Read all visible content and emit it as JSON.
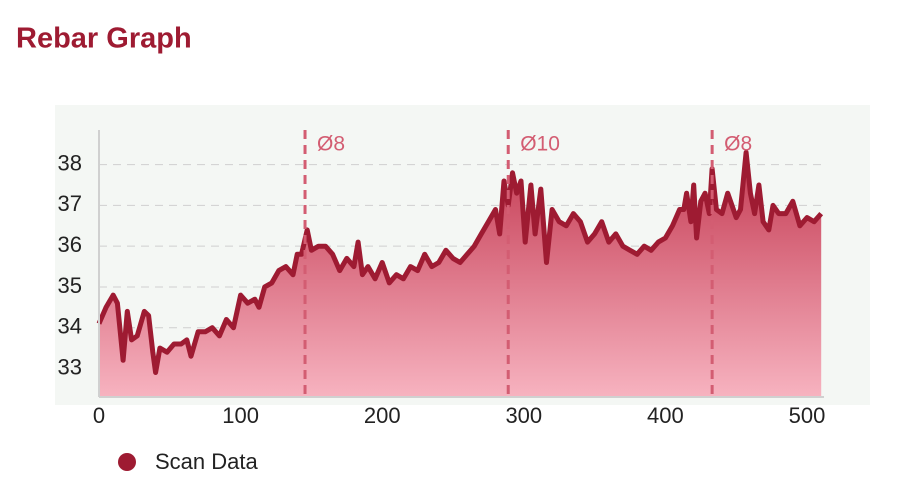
{
  "chart_data": {
    "type": "area",
    "title": "Rebar Graph",
    "x": [
      0,
      5,
      10,
      13,
      17,
      20,
      23,
      27,
      32,
      35,
      38,
      40,
      43,
      48,
      53,
      58,
      62,
      65,
      70,
      75,
      80,
      85,
      90,
      95,
      100,
      105,
      110,
      113,
      117,
      122,
      127,
      132,
      137,
      140,
      143,
      147,
      150,
      155,
      160,
      165,
      170,
      175,
      180,
      183,
      186,
      190,
      195,
      200,
      205,
      210,
      215,
      220,
      225,
      230,
      235,
      240,
      245,
      250,
      255,
      260,
      265,
      270,
      275,
      280,
      283,
      286,
      289,
      292,
      295,
      298,
      301,
      305,
      308,
      312,
      316,
      320,
      325,
      330,
      335,
      340,
      345,
      350,
      355,
      360,
      365,
      370,
      375,
      380,
      385,
      390,
      395,
      400,
      405,
      410,
      413,
      415,
      418,
      420,
      422,
      425,
      428,
      431,
      433,
      436,
      440,
      444,
      447,
      450,
      453,
      457,
      460,
      463,
      466,
      469,
      473,
      476,
      480,
      485,
      490,
      495,
      500,
      505,
      510
    ],
    "series": [
      {
        "name": "Scan Data",
        "color": "#9e1b32",
        "values": [
          34.1,
          34.5,
          34.8,
          34.6,
          33.2,
          34.4,
          33.7,
          33.8,
          34.4,
          34.3,
          33.4,
          32.9,
          33.5,
          33.4,
          33.6,
          33.6,
          33.7,
          33.3,
          33.9,
          33.9,
          34.0,
          33.8,
          34.2,
          34.0,
          34.8,
          34.6,
          34.7,
          34.5,
          35.0,
          35.1,
          35.4,
          35.5,
          35.3,
          35.8,
          35.8,
          36.4,
          35.9,
          36.0,
          36.0,
          35.8,
          35.4,
          35.7,
          35.5,
          36.1,
          35.3,
          35.5,
          35.2,
          35.6,
          35.1,
          35.3,
          35.2,
          35.5,
          35.4,
          35.8,
          35.5,
          35.6,
          35.9,
          35.7,
          35.6,
          35.8,
          36.0,
          36.3,
          36.6,
          36.9,
          36.3,
          37.6,
          37.0,
          37.8,
          37.3,
          37.6,
          36.1,
          37.5,
          36.3,
          37.4,
          35.6,
          36.9,
          36.6,
          36.5,
          36.8,
          36.6,
          36.1,
          36.3,
          36.6,
          36.1,
          36.3,
          36.0,
          35.9,
          35.8,
          36.0,
          35.9,
          36.1,
          36.2,
          36.5,
          36.9,
          36.9,
          37.3,
          36.6,
          37.5,
          36.2,
          37.1,
          37.3,
          36.8,
          37.9,
          36.9,
          36.8,
          37.3,
          37.0,
          36.7,
          36.9,
          38.3,
          37.3,
          36.8,
          37.5,
          36.6,
          36.4,
          37.0,
          36.8,
          36.8,
          37.1,
          36.5,
          36.7,
          36.6,
          36.8
        ]
      }
    ],
    "annotations": [
      {
        "x": 145.5,
        "label": "Ø8"
      },
      {
        "x": 289,
        "label": "Ø10"
      },
      {
        "x": 433,
        "label": "Ø8"
      }
    ],
    "xlim": [
      0,
      512
    ],
    "ylim": [
      32.3,
      38.85
    ],
    "xticks": [
      0,
      100,
      200,
      300,
      400,
      500
    ],
    "yticks": [
      33,
      34,
      35,
      36,
      37,
      38
    ],
    "grid": true
  }
}
